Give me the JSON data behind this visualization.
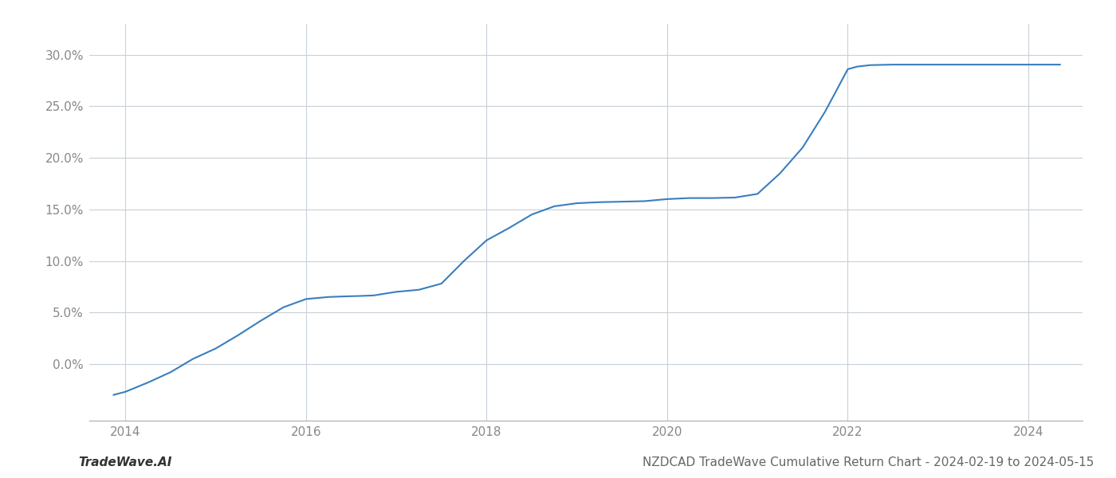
{
  "title": "NZDCAD TradeWave Cumulative Return Chart - 2024-02-19 to 2024-05-15",
  "watermark": "TradeWave.AI",
  "line_color": "#3a7ebf",
  "line_width": 1.5,
  "background_color": "#ffffff",
  "grid_color": "#c8d0d8",
  "x_values": [
    2013.87,
    2014.0,
    2014.25,
    2014.5,
    2014.75,
    2015.0,
    2015.25,
    2015.5,
    2015.75,
    2016.0,
    2016.25,
    2016.4,
    2016.6,
    2016.75,
    2017.0,
    2017.25,
    2017.5,
    2017.75,
    2018.0,
    2018.25,
    2018.5,
    2018.75,
    2019.0,
    2019.25,
    2019.5,
    2019.75,
    2020.0,
    2020.25,
    2020.5,
    2020.75,
    2021.0,
    2021.25,
    2021.5,
    2021.75,
    2022.0,
    2022.1,
    2022.25,
    2022.5,
    2022.75,
    2023.0,
    2023.25,
    2023.5,
    2023.75,
    2024.0,
    2024.35
  ],
  "y_values": [
    -3.0,
    -2.7,
    -1.8,
    -0.8,
    0.5,
    1.5,
    2.8,
    4.2,
    5.5,
    6.3,
    6.5,
    6.55,
    6.6,
    6.65,
    7.0,
    7.2,
    7.8,
    10.0,
    12.0,
    13.2,
    14.5,
    15.3,
    15.6,
    15.7,
    15.75,
    15.8,
    16.0,
    16.1,
    16.1,
    16.15,
    16.5,
    18.5,
    21.0,
    24.5,
    28.6,
    28.85,
    29.0,
    29.05,
    29.05,
    29.05,
    29.05,
    29.05,
    29.05,
    29.05,
    29.05
  ],
  "xlim": [
    2013.6,
    2024.6
  ],
  "ylim": [
    -5.5,
    33.0
  ],
  "xticks": [
    2014,
    2016,
    2018,
    2020,
    2022,
    2024
  ],
  "yticks": [
    0.0,
    5.0,
    10.0,
    15.0,
    20.0,
    25.0,
    30.0
  ],
  "ytick_labels": [
    "0.0%",
    "5.0%",
    "10.0%",
    "15.0%",
    "20.0%",
    "25.0%",
    "30.0%"
  ],
  "title_fontsize": 11,
  "tick_fontsize": 11,
  "watermark_fontsize": 11
}
